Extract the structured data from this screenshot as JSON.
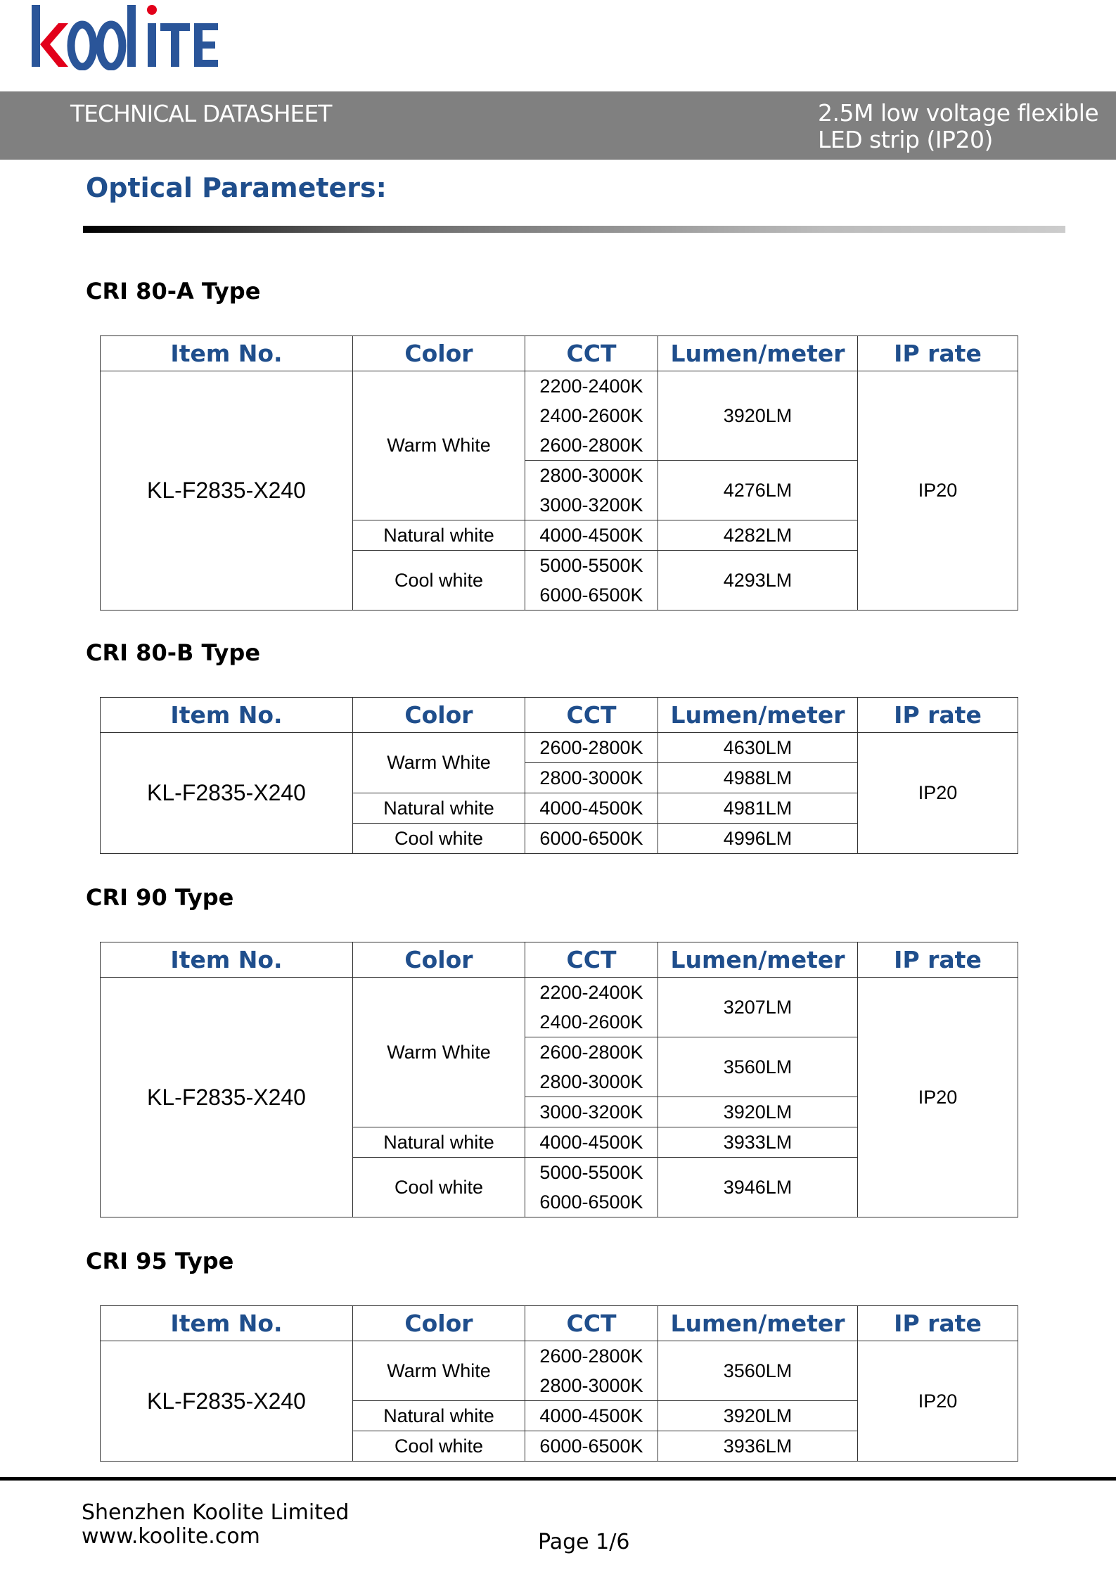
{
  "logo": {
    "text": "koolite",
    "colors": {
      "blue": "#2a5599",
      "red": "#e2001a"
    }
  },
  "header": {
    "doc_type": "TECHNICAL DATASHEET",
    "product_line1": "2.5M low voltage flexible",
    "product_line2": "LED strip (IP20)",
    "band_color": "#808080"
  },
  "page_title": "Optical Parameters:",
  "accent_color": "#1f4e8c",
  "columns": [
    "Item No.",
    "Color",
    "CCT",
    "Lumen/meter",
    "IP rate"
  ],
  "tables": [
    {
      "title": "CRI 80-A Type",
      "item": "KL-F2835-X240",
      "ip": "IP20",
      "colors": [
        {
          "name": "Warm White",
          "groups": [
            {
              "lumen": "3920LM",
              "ccts": [
                "2200-2400K",
                "2400-2600K",
                "2600-2800K"
              ]
            },
            {
              "lumen": "4276LM",
              "ccts": [
                "2800-3000K",
                "3000-3200K"
              ]
            }
          ]
        },
        {
          "name": "Natural white",
          "groups": [
            {
              "lumen": "4282LM",
              "ccts": [
                "4000-4500K"
              ]
            }
          ]
        },
        {
          "name": "Cool white",
          "groups": [
            {
              "lumen": "4293LM",
              "ccts": [
                "5000-5500K",
                "6000-6500K"
              ]
            }
          ]
        }
      ]
    },
    {
      "title": "CRI 80-B Type",
      "item": "KL-F2835-X240",
      "ip": "IP20",
      "colors": [
        {
          "name": "Warm White",
          "groups": [
            {
              "lumen": "4630LM",
              "ccts": [
                "2600-2800K"
              ]
            },
            {
              "lumen": "4988LM",
              "ccts": [
                "2800-3000K"
              ]
            }
          ]
        },
        {
          "name": "Natural white",
          "groups": [
            {
              "lumen": "4981LM",
              "ccts": [
                "4000-4500K"
              ]
            }
          ]
        },
        {
          "name": "Cool white",
          "groups": [
            {
              "lumen": "4996LM",
              "ccts": [
                "6000-6500K"
              ]
            }
          ]
        }
      ]
    },
    {
      "title": "CRI 90 Type",
      "item": "KL-F2835-X240",
      "ip": "IP20",
      "colors": [
        {
          "name": "Warm White",
          "groups": [
            {
              "lumen": "3207LM",
              "ccts": [
                "2200-2400K",
                "2400-2600K"
              ]
            },
            {
              "lumen": "3560LM",
              "ccts": [
                "2600-2800K",
                "2800-3000K"
              ]
            },
            {
              "lumen": "3920LM",
              "ccts": [
                "3000-3200K"
              ]
            }
          ]
        },
        {
          "name": "Natural white",
          "groups": [
            {
              "lumen": "3933LM",
              "ccts": [
                "4000-4500K"
              ]
            }
          ]
        },
        {
          "name": "Cool white",
          "groups": [
            {
              "lumen": "3946LM",
              "ccts": [
                "5000-5500K",
                "6000-6500K"
              ]
            }
          ]
        }
      ]
    },
    {
      "title": "CRI 95 Type",
      "item": "KL-F2835-X240",
      "ip": "IP20",
      "colors": [
        {
          "name": "Warm White",
          "groups": [
            {
              "lumen": "3560LM",
              "ccts": [
                "2600-2800K",
                "2800-3000K"
              ]
            }
          ]
        },
        {
          "name": "Natural white",
          "groups": [
            {
              "lumen": "3920LM",
              "ccts": [
                "4000-4500K"
              ]
            }
          ]
        },
        {
          "name": "Cool white",
          "groups": [
            {
              "lumen": "3936LM",
              "ccts": [
                "6000-6500K"
              ]
            }
          ]
        }
      ]
    }
  ],
  "footer": {
    "company": "Shenzhen Koolite Limited",
    "website": "www.koolite.com",
    "page": "Page 1/6"
  }
}
